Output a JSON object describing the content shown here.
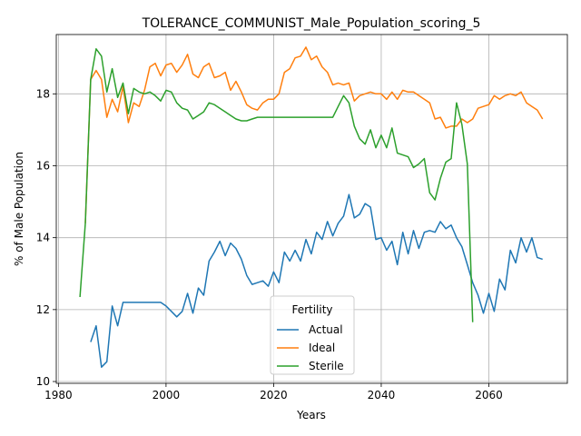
{
  "chart_data": {
    "type": "line",
    "title": "TOLERANCE_COMMUNIST_Male_Population_scoring_5",
    "xlabel": "Years",
    "ylabel": "% of Male Population",
    "xlim": [
      1979.6,
      2074.6
    ],
    "ylim": [
      9.95,
      19.65
    ],
    "xticks": [
      1980,
      2000,
      2020,
      2040,
      2060
    ],
    "yticks": [
      10,
      12,
      14,
      16,
      18
    ],
    "grid": true,
    "legend": {
      "title": "Fertility",
      "placement": "lower-center"
    },
    "series": [
      {
        "name": "Actual",
        "color": "#1f77b4",
        "x": [
          1986,
          1987,
          1988,
          1989,
          1990,
          1991,
          1992,
          1993,
          1994,
          1995,
          1996,
          1997,
          1998,
          1999,
          2000,
          2001,
          2002,
          2003,
          2004,
          2005,
          2006,
          2007,
          2008,
          2009,
          2010,
          2011,
          2012,
          2013,
          2014,
          2015,
          2016,
          2017,
          2018,
          2019,
          2020,
          2021,
          2022,
          2023,
          2024,
          2025,
          2026,
          2027,
          2028,
          2029,
          2030,
          2031,
          2032,
          2033,
          2034,
          2035,
          2036,
          2037,
          2038,
          2039,
          2040,
          2041,
          2042,
          2043,
          2044,
          2045,
          2046,
          2047,
          2048,
          2049,
          2050,
          2051,
          2052,
          2053,
          2054,
          2055,
          2056,
          2057,
          2058,
          2059,
          2060,
          2061,
          2062,
          2063,
          2064,
          2065,
          2066,
          2067,
          2068,
          2069,
          2070
        ],
        "values": [
          11.1,
          11.55,
          10.4,
          10.55,
          12.1,
          11.55,
          12.2,
          12.2,
          12.2,
          12.2,
          12.2,
          12.2,
          12.2,
          12.2,
          12.1,
          11.95,
          11.8,
          11.95,
          12.45,
          11.9,
          12.6,
          12.4,
          13.35,
          13.6,
          13.9,
          13.5,
          13.85,
          13.7,
          13.4,
          12.95,
          12.7,
          12.75,
          12.8,
          12.65,
          13.05,
          12.75,
          13.6,
          13.35,
          13.65,
          13.35,
          13.95,
          13.55,
          14.15,
          13.95,
          14.45,
          14.05,
          14.4,
          14.6,
          15.2,
          14.55,
          14.65,
          14.95,
          14.85,
          13.95,
          14.0,
          13.65,
          13.9,
          13.25,
          14.15,
          13.55,
          14.2,
          13.7,
          14.15,
          14.2,
          14.15,
          14.45,
          14.25,
          14.35,
          14.0,
          13.75,
          13.25,
          12.75,
          12.4,
          11.9,
          12.45,
          11.95,
          12.85,
          12.55,
          13.65,
          13.3,
          14.0,
          13.6,
          14.0,
          13.45,
          13.4
        ]
      },
      {
        "name": "Ideal",
        "color": "#ff7f0e",
        "x": [
          1985,
          1986,
          1987,
          1988,
          1989,
          1990,
          1991,
          1992,
          1993,
          1994,
          1995,
          1996,
          1997,
          1998,
          1999,
          2000,
          2001,
          2002,
          2003,
          2004,
          2005,
          2006,
          2007,
          2008,
          2009,
          2010,
          2011,
          2012,
          2013,
          2014,
          2015,
          2016,
          2017,
          2018,
          2019,
          2020,
          2021,
          2022,
          2023,
          2024,
          2025,
          2026,
          2027,
          2028,
          2029,
          2030,
          2031,
          2032,
          2033,
          2034,
          2035,
          2036,
          2037,
          2038,
          2039,
          2040,
          2041,
          2042,
          2043,
          2044,
          2045,
          2046,
          2047,
          2048,
          2049,
          2050,
          2051,
          2052,
          2053,
          2054,
          2055,
          2056,
          2057,
          2058,
          2059,
          2060,
          2061,
          2062,
          2063,
          2064,
          2065,
          2066,
          2067,
          2068,
          2069,
          2070
        ],
        "values": [
          14.4,
          18.4,
          18.65,
          18.4,
          17.35,
          17.85,
          17.5,
          18.2,
          17.2,
          17.75,
          17.65,
          18.1,
          18.75,
          18.85,
          18.5,
          18.8,
          18.85,
          18.6,
          18.8,
          19.1,
          18.55,
          18.45,
          18.75,
          18.85,
          18.45,
          18.5,
          18.6,
          18.1,
          18.35,
          18.05,
          17.7,
          17.6,
          17.55,
          17.75,
          17.85,
          17.85,
          18.0,
          18.6,
          18.7,
          19.0,
          19.05,
          19.3,
          18.95,
          19.05,
          18.75,
          18.6,
          18.25,
          18.3,
          18.25,
          18.3,
          17.8,
          17.95,
          18.0,
          18.05,
          18.0,
          18.0,
          17.85,
          18.05,
          17.85,
          18.1,
          18.05,
          18.05,
          17.95,
          17.85,
          17.75,
          17.3,
          17.35,
          17.05,
          17.1,
          17.1,
          17.3,
          17.2,
          17.3,
          17.6,
          17.65,
          17.7,
          17.95,
          17.85,
          17.95,
          18.0,
          17.95,
          18.05,
          17.75,
          17.65,
          17.55,
          17.3
        ]
      },
      {
        "name": "Sterile",
        "color": "#2ca02c",
        "x": [
          1984,
          1985,
          1986,
          1987,
          1988,
          1989,
          1990,
          1991,
          1992,
          1993,
          1994,
          1995,
          1996,
          1997,
          1998,
          1999,
          2000,
          2001,
          2002,
          2003,
          2004,
          2005,
          2006,
          2007,
          2008,
          2009,
          2010,
          2011,
          2012,
          2013,
          2014,
          2015,
          2016,
          2017,
          2018,
          2019,
          2020,
          2021,
          2022,
          2023,
          2024,
          2025,
          2026,
          2027,
          2028,
          2029,
          2030,
          2031,
          2032,
          2033,
          2034,
          2035,
          2036,
          2037,
          2038,
          2039,
          2040,
          2041,
          2042,
          2043,
          2044,
          2045,
          2046,
          2047,
          2048,
          2049,
          2050,
          2051,
          2052,
          2053,
          2054,
          2055,
          2056,
          2057
        ],
        "values": [
          12.35,
          14.4,
          18.4,
          19.25,
          19.05,
          18.05,
          18.7,
          17.9,
          18.3,
          17.45,
          18.15,
          18.05,
          18.0,
          18.05,
          17.95,
          17.8,
          18.1,
          18.05,
          17.75,
          17.6,
          17.55,
          17.3,
          17.4,
          17.5,
          17.75,
          17.7,
          17.6,
          17.5,
          17.4,
          17.3,
          17.25,
          17.25,
          17.3,
          17.35,
          17.35,
          17.35,
          17.35,
          17.35,
          17.35,
          17.35,
          17.35,
          17.35,
          17.35,
          17.35,
          17.35,
          17.35,
          17.35,
          17.35,
          17.65,
          17.95,
          17.75,
          17.1,
          16.75,
          16.6,
          17.0,
          16.5,
          16.85,
          16.5,
          17.05,
          16.35,
          16.3,
          16.25,
          15.95,
          16.05,
          16.2,
          15.25,
          15.05,
          15.65,
          16.1,
          16.2,
          17.75,
          17.15,
          16.05,
          11.65
        ]
      }
    ]
  }
}
